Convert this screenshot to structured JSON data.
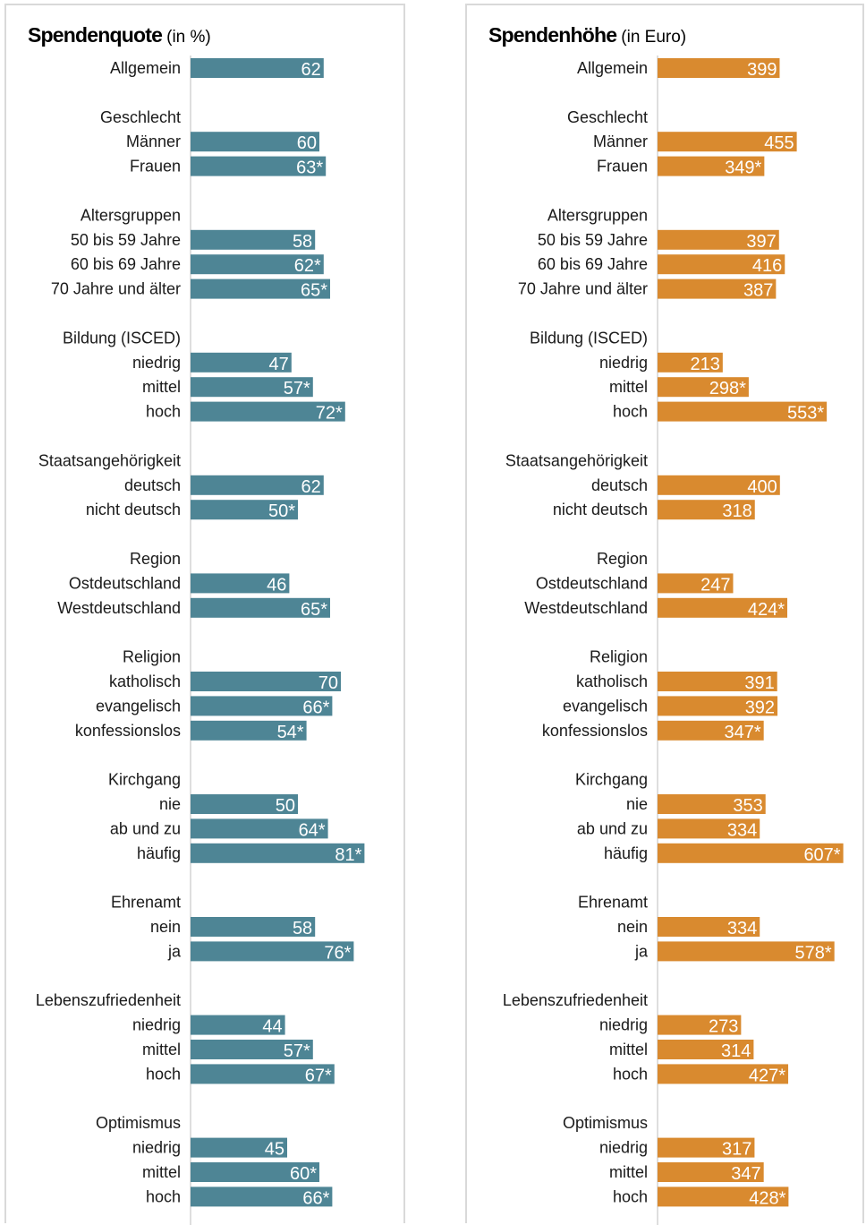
{
  "chart_data": [
    {
      "type": "bar",
      "orientation": "horizontal",
      "title": "Spendenquote",
      "unit": "(in %)",
      "color": "#4e8595",
      "xlim": [
        0,
        100
      ],
      "groups": [
        {
          "title": "",
          "rows": [
            {
              "label": "Allgemein",
              "value": 62,
              "text": "62"
            }
          ]
        },
        {
          "title": "Geschlecht",
          "rows": [
            {
              "label": "Männer",
              "value": 60,
              "text": "60"
            },
            {
              "label": "Frauen",
              "value": 63,
              "text": "63*"
            }
          ]
        },
        {
          "title": "Altersgruppen",
          "rows": [
            {
              "label": "50 bis 59 Jahre",
              "value": 58,
              "text": "58"
            },
            {
              "label": "60 bis 69 Jahre",
              "value": 62,
              "text": "62*"
            },
            {
              "label": "70 Jahre und älter",
              "value": 65,
              "text": "65*"
            }
          ]
        },
        {
          "title": "Bildung (ISCED)",
          "rows": [
            {
              "label": "niedrig",
              "value": 47,
              "text": "47"
            },
            {
              "label": "mittel",
              "value": 57,
              "text": "57*"
            },
            {
              "label": "hoch",
              "value": 72,
              "text": "72*"
            }
          ]
        },
        {
          "title": "Staatsangehörigkeit",
          "rows": [
            {
              "label": "deutsch",
              "value": 62,
              "text": "62"
            },
            {
              "label": "nicht deutsch",
              "value": 50,
              "text": "50*"
            }
          ]
        },
        {
          "title": "Region",
          "rows": [
            {
              "label": "Ostdeutschland",
              "value": 46,
              "text": "46"
            },
            {
              "label": "Westdeutschland",
              "value": 65,
              "text": "65*"
            }
          ]
        },
        {
          "title": "Religion",
          "rows": [
            {
              "label": "katholisch",
              "value": 70,
              "text": "70"
            },
            {
              "label": "evangelisch",
              "value": 66,
              "text": "66*"
            },
            {
              "label": "konfessionslos",
              "value": 54,
              "text": "54*"
            }
          ]
        },
        {
          "title": "Kirchgang",
          "rows": [
            {
              "label": "nie",
              "value": 50,
              "text": "50"
            },
            {
              "label": "ab und zu",
              "value": 64,
              "text": "64*"
            },
            {
              "label": "häufig",
              "value": 81,
              "text": "81*"
            }
          ]
        },
        {
          "title": "Ehrenamt",
          "rows": [
            {
              "label": "nein",
              "value": 58,
              "text": "58"
            },
            {
              "label": "ja",
              "value": 76,
              "text": "76*"
            }
          ]
        },
        {
          "title": "Lebenszufriedenheit",
          "rows": [
            {
              "label": "niedrig",
              "value": 44,
              "text": "44"
            },
            {
              "label": "mittel",
              "value": 57,
              "text": "57*"
            },
            {
              "label": "hoch",
              "value": 67,
              "text": "67*"
            }
          ]
        },
        {
          "title": "Optimismus",
          "rows": [
            {
              "label": "niedrig",
              "value": 45,
              "text": "45"
            },
            {
              "label": "mittel",
              "value": 60,
              "text": "60*"
            },
            {
              "label": "hoch",
              "value": 66,
              "text": "66*"
            }
          ]
        }
      ]
    },
    {
      "type": "bar",
      "orientation": "horizontal",
      "title": "Spendenhöhe",
      "unit": "(in Euro)",
      "color": "#d98a2f",
      "xlim": [
        0,
        700
      ],
      "groups": [
        {
          "title": "",
          "rows": [
            {
              "label": "Allgemein",
              "value": 399,
              "text": "399"
            }
          ]
        },
        {
          "title": "Geschlecht",
          "rows": [
            {
              "label": "Männer",
              "value": 455,
              "text": "455"
            },
            {
              "label": "Frauen",
              "value": 349,
              "text": "349*"
            }
          ]
        },
        {
          "title": "Altersgruppen",
          "rows": [
            {
              "label": "50 bis 59 Jahre",
              "value": 397,
              "text": "397"
            },
            {
              "label": "60 bis 69 Jahre",
              "value": 416,
              "text": "416"
            },
            {
              "label": "70 Jahre und älter",
              "value": 387,
              "text": "387"
            }
          ]
        },
        {
          "title": "Bildung (ISCED)",
          "rows": [
            {
              "label": "niedrig",
              "value": 213,
              "text": "213"
            },
            {
              "label": "mittel",
              "value": 298,
              "text": "298*"
            },
            {
              "label": "hoch",
              "value": 553,
              "text": "553*"
            }
          ]
        },
        {
          "title": "Staatsangehörigkeit",
          "rows": [
            {
              "label": "deutsch",
              "value": 400,
              "text": "400"
            },
            {
              "label": "nicht deutsch",
              "value": 318,
              "text": "318"
            }
          ]
        },
        {
          "title": "Region",
          "rows": [
            {
              "label": "Ostdeutschland",
              "value": 247,
              "text": "247"
            },
            {
              "label": "Westdeutschland",
              "value": 424,
              "text": "424*"
            }
          ]
        },
        {
          "title": "Religion",
          "rows": [
            {
              "label": "katholisch",
              "value": 391,
              "text": "391"
            },
            {
              "label": "evangelisch",
              "value": 392,
              "text": "392"
            },
            {
              "label": "konfessionslos",
              "value": 347,
              "text": "347*"
            }
          ]
        },
        {
          "title": "Kirchgang",
          "rows": [
            {
              "label": "nie",
              "value": 353,
              "text": "353"
            },
            {
              "label": "ab und zu",
              "value": 334,
              "text": "334"
            },
            {
              "label": "häufig",
              "value": 607,
              "text": "607*"
            }
          ]
        },
        {
          "title": "Ehrenamt",
          "rows": [
            {
              "label": "nein",
              "value": 334,
              "text": "334"
            },
            {
              "label": "ja",
              "value": 578,
              "text": "578*"
            }
          ]
        },
        {
          "title": "Lebenszufriedenheit",
          "rows": [
            {
              "label": "niedrig",
              "value": 273,
              "text": "273"
            },
            {
              "label": "mittel",
              "value": 314,
              "text": "314"
            },
            {
              "label": "hoch",
              "value": 427,
              "text": "427*"
            }
          ]
        },
        {
          "title": "Optimismus",
          "rows": [
            {
              "label": "niedrig",
              "value": 317,
              "text": "317"
            },
            {
              "label": "mittel",
              "value": 347,
              "text": "347"
            },
            {
              "label": "hoch",
              "value": 428,
              "text": "428*"
            }
          ]
        }
      ]
    }
  ]
}
